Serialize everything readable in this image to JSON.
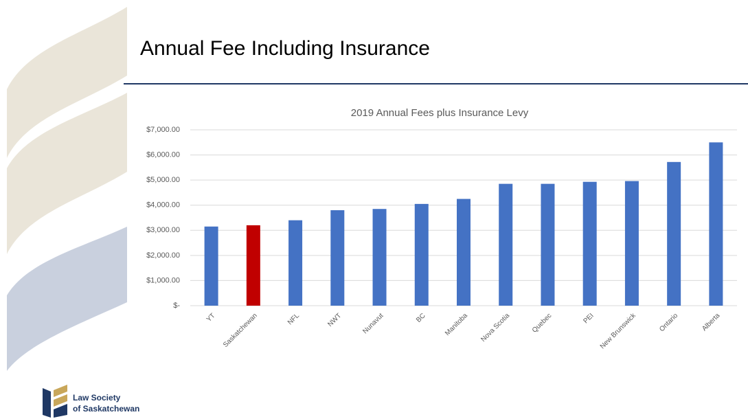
{
  "slide": {
    "title": "Annual Fee Including Insurance",
    "logo": [
      "Law Society",
      "of Saskatchewan"
    ]
  },
  "chart_data": {
    "type": "bar",
    "title": "2019 Annual Fees plus Insurance Levy",
    "categories": [
      "YT",
      "Saskatchewan",
      "NFL",
      "NWT",
      "Nunavut",
      "BC",
      "Manitoba",
      "Nova Scotia",
      "Quebec",
      "PEI",
      "New Brunswick",
      "Ontario",
      "Alberta"
    ],
    "values": [
      3150,
      3200,
      3400,
      3800,
      3850,
      4050,
      4250,
      4850,
      4850,
      4930,
      4960,
      5720,
      6500
    ],
    "colors": [
      "#4472c4",
      "#c00000",
      "#4472c4",
      "#4472c4",
      "#4472c4",
      "#4472c4",
      "#4472c4",
      "#4472c4",
      "#4472c4",
      "#4472c4",
      "#4472c4",
      "#4472c4",
      "#4472c4"
    ],
    "ylim": [
      0,
      7000
    ],
    "yticks": [
      {
        "value": 0,
        "label": "$-"
      },
      {
        "value": 1000,
        "label": "$1,000.00"
      },
      {
        "value": 2000,
        "label": "$2,000.00"
      },
      {
        "value": 3000,
        "label": "$3,000.00"
      },
      {
        "value": 4000,
        "label": "$4,000.00"
      },
      {
        "value": 5000,
        "label": "$5,000.00"
      },
      {
        "value": 6000,
        "label": "$6,000.00"
      },
      {
        "value": 7000,
        "label": "$7,000.00"
      }
    ],
    "grid": true
  }
}
